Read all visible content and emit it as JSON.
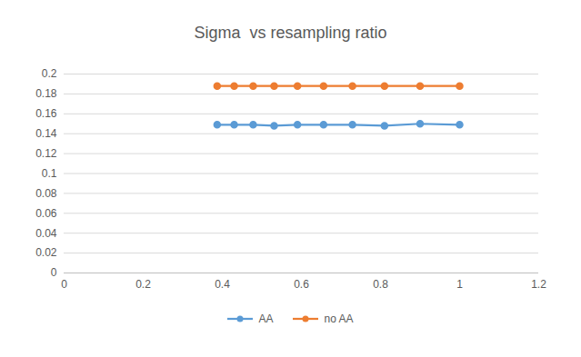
{
  "chart_data": {
    "type": "line",
    "title": "Sigma  vs resampling ratio",
    "x": [
      0.387,
      0.43,
      0.478,
      0.531,
      0.59,
      0.656,
      0.729,
      0.81,
      0.9,
      1
    ],
    "series": [
      {
        "name": "AA",
        "color": "#5b9bd5",
        "marker": "circle",
        "line_style": "solid",
        "values": [
          0.149,
          0.149,
          0.149,
          0.148,
          0.149,
          0.149,
          0.149,
          0.148,
          0.15,
          0.149
        ]
      },
      {
        "name": "no AA",
        "color": "#ed7d31",
        "marker": "circle",
        "line_style": "solid",
        "values": [
          0.188,
          0.188,
          0.188,
          0.188,
          0.188,
          0.188,
          0.188,
          0.188,
          0.188,
          0.188
        ]
      }
    ],
    "xlim": [
      0,
      1.2
    ],
    "xticks": [
      0,
      0.2,
      0.4,
      0.6,
      0.8,
      1,
      1.2
    ],
    "ylim": [
      0,
      0.2
    ],
    "yticks": [
      0,
      0.02,
      0.04,
      0.06,
      0.08,
      0.1,
      0.12,
      0.14,
      0.16,
      0.18,
      0.2
    ],
    "grid": true,
    "legend": "bottom"
  }
}
